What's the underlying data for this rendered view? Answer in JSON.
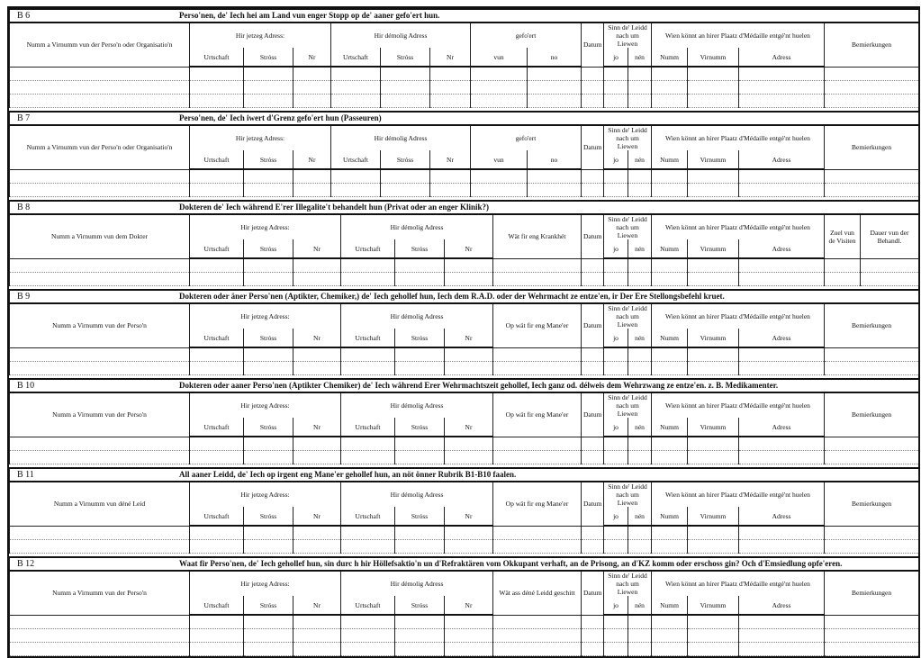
{
  "headers": {
    "hir_jetzeg": "Hir jetzeg Adress:",
    "hir_demolig": "Hir démolig Adress",
    "urtschaft": "Urtschaft",
    "stross": "Stróss",
    "nr": "Nr",
    "gefoert": "gefo'ert",
    "vun": "vun",
    "no": "no",
    "datum": "Datum",
    "sinn": "Sinn de' Leidd nach um Liewen",
    "jo": "jo",
    "nen": "nén",
    "wien": "Wien könnt an hirer Plaatz d'Médaille entgé'nt huelen",
    "numm": "Numm",
    "virnumm": "Virnumm",
    "adress": "Adress",
    "bemierkungen": "Bemierkungen",
    "zuel": "Zuel vun de Visiten",
    "dauer": "Dauer vun der Behandl."
  },
  "sections": [
    {
      "code": "B 6",
      "title": "Perso'nen, de' Iech hei am Land vun enger Stopp op de' aaner gefo'ert hun.",
      "name_header": "Numm a Virnumm vun der Perso'n oder Organisatio'n",
      "variant": "gefoert",
      "rows": 3
    },
    {
      "code": "B 7",
      "title": "Perso'nen, de' Iech iwert d'Grenz gefo'ert hun (Passeuren)",
      "name_header": "Numm a Virnumm vun der Perso'n oder Organisatio'n",
      "variant": "gefoert",
      "rows": 2
    },
    {
      "code": "B 8",
      "title": "Dokteren de' Iech während E'rer Illegalite't behandelt hun (Privat oder an enger Klinik?)",
      "name_header": "Numm a Virnumm vun dem Dokter",
      "variant": "dokter",
      "third_header": "Wät fir eng Krankhét",
      "rows": 2
    },
    {
      "code": "B 9",
      "title": "Dokteren oder äner Perso'nen (Aptikter, Chemiker,) de' Iech gehollef hun, Iech dem R.A.D. oder der Wehrmacht ze entze'en, ir Der Ere Stellongsbefehl kruet.",
      "name_header": "Numm a Virnumm vun der Perso'n",
      "variant": "plain",
      "third_header": "Op wät fir eng Mane'er",
      "rows": 2
    },
    {
      "code": "B 10",
      "title": "Dokteren oder aaner Perso'nen (Aptikter Chemiker) de' Iech während Erer Wehrmachtszeit gehollef, Iech ganz od. délweis dem Wehrzwang ze entze'en. z. B. Medikamenter.",
      "name_header": "Numm a Virnumm vun der Perso'n",
      "variant": "plain",
      "third_header": "Op wät fir eng Mane'er",
      "rows": 2
    },
    {
      "code": "B 11",
      "title": "All aaner Leidd, de' Iech op irgent eng Mane'er gehollef hun, an nöt önner Rubrik B1-B10 faalen.",
      "name_header": "Numm a Virnumm vun déné Leid",
      "variant": "plain",
      "third_header": "Op wät fir eng Mane'er",
      "rows": 2
    },
    {
      "code": "B 12",
      "title": "Waat fir Perso'nen, de' Iech gehollef hun, sin durc h hir Höllefsaktio'n un d'Refraktären vom Okkupant verhaft, an de Prisong, an d'KZ komm oder erschoss gin? Och d'Emsiedlung opfe'eren.",
      "name_header": "Numm a Virnumm vun der Perso'n",
      "variant": "plain",
      "third_header": "Wät ass déné Leidd geschitt",
      "rows": 3
    }
  ]
}
